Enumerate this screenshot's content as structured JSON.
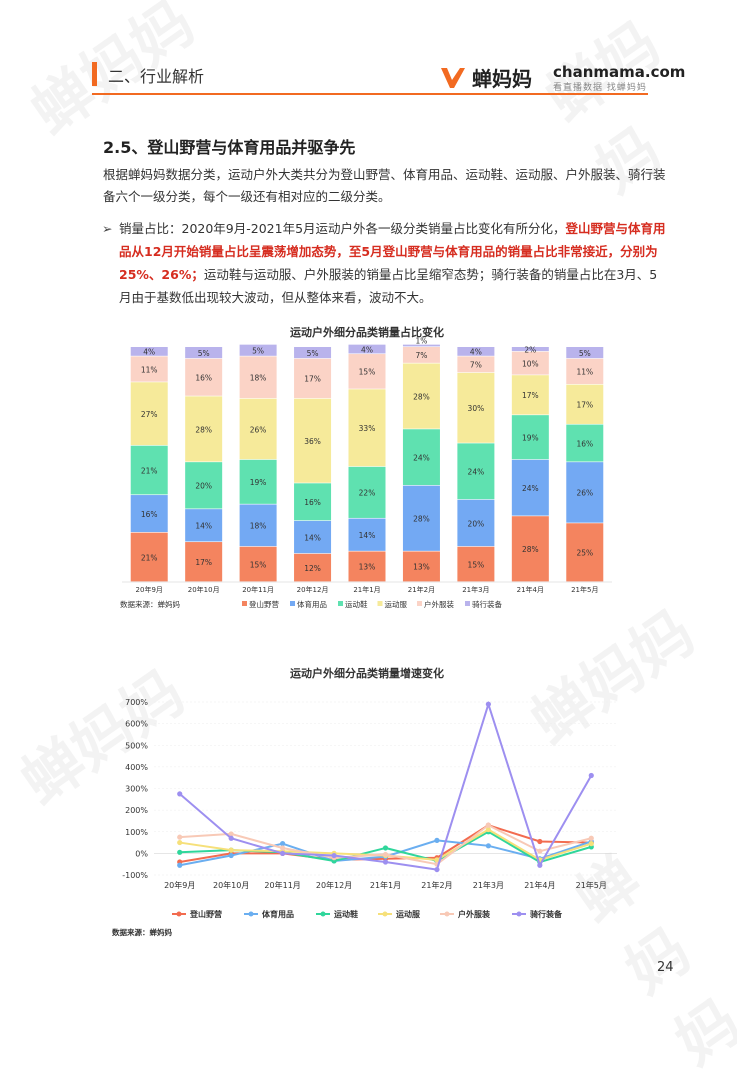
{
  "header": {
    "section": "二、行业解析",
    "logo_cn": "蝉妈妈",
    "logo_en": "chanmama.com",
    "logo_tagline": "看直播数据 找蝉妈妈",
    "accent": "#f26a21"
  },
  "watermark": "蝉妈妈",
  "title": "2.5、登山野营与体育用品并驱争先",
  "paragraph": "根据蝉妈妈数据分类，运动户外大类共分为登山野营、体育用品、运动鞋、运动服、户外服装、骑行装备六个一级分类，每个一级还有相对应的二级分类。",
  "bullet": {
    "icon": "arrow-right-icon",
    "part1": "销量占比：2020年9月-2021年5月运动户外各一级分类销量占比变化有所分化，",
    "part2_red": "登山野营与体育用品从12月开始销量占比呈震荡增加态势，至5月登山野营与体育用品的销量占比非常接近，分别为25%、26%；",
    "part3": "运动鞋与运动服、户外服装的销量占比呈缩窄态势；骑行装备的销量占比在3月、5月由于基数低出现较大波动，但从整体来看，波动不大。"
  },
  "chart_data": [
    {
      "type": "bar",
      "stacked": true,
      "title": "运动户外细分品类销量占比变化",
      "source": "数据来源：蝉妈妈",
      "categories": [
        "20年9月",
        "20年10月",
        "20年11月",
        "20年12月",
        "21年1月",
        "21年2月",
        "21年3月",
        "21年4月",
        "21年5月"
      ],
      "series": [
        {
          "name": "登山野营",
          "color": "#f4845f",
          "values": [
            21,
            17,
            15,
            12,
            13,
            13,
            15,
            28,
            25
          ]
        },
        {
          "name": "体育用品",
          "color": "#73a9f3",
          "values": [
            16,
            14,
            18,
            14,
            14,
            28,
            20,
            24,
            26
          ]
        },
        {
          "name": "运动鞋",
          "color": "#5fe1b0",
          "values": [
            21,
            20,
            19,
            16,
            22,
            24,
            24,
            19,
            16
          ]
        },
        {
          "name": "运动服",
          "color": "#f6ea9a",
          "values": [
            27,
            28,
            26,
            36,
            33,
            28,
            30,
            17,
            17
          ]
        },
        {
          "name": "户外服装",
          "color": "#fbd3c6",
          "values": [
            11,
            16,
            18,
            17,
            15,
            7,
            7,
            10,
            11
          ]
        },
        {
          "name": "骑行装备",
          "color": "#b9b3ec",
          "values": [
            4,
            5,
            5,
            5,
            4,
            1,
            4,
            2,
            5
          ]
        }
      ],
      "ylim": [
        0,
        100
      ],
      "legend": "bottom"
    },
    {
      "type": "line",
      "title": "运动户外细分品类销量增速变化",
      "source": "数据来源：蝉妈妈",
      "categories": [
        "20年9月",
        "20年10月",
        "20年11月",
        "20年12月",
        "21年1月",
        "21年2月",
        "21年3月",
        "21年4月",
        "21年5月"
      ],
      "yticks": [
        "-100%",
        "0%",
        "100%",
        "200%",
        "300%",
        "400%",
        "500%",
        "600%",
        "700%"
      ],
      "ylim": [
        -100,
        700
      ],
      "series": [
        {
          "name": "登山野营",
          "color": "#f26b4f",
          "values": [
            -40,
            0,
            0,
            -30,
            -25,
            -20,
            130,
            55,
            50
          ]
        },
        {
          "name": "体育用品",
          "color": "#6aaef0",
          "values": [
            -55,
            -10,
            45,
            -35,
            -15,
            60,
            35,
            -25,
            55
          ]
        },
        {
          "name": "运动鞋",
          "color": "#2fd69b",
          "values": [
            5,
            15,
            5,
            -35,
            25,
            -35,
            100,
            -40,
            30
          ]
        },
        {
          "name": "运动服",
          "color": "#f6e07a",
          "values": [
            50,
            15,
            10,
            0,
            -10,
            -30,
            110,
            -30,
            45
          ]
        },
        {
          "name": "户外服装",
          "color": "#f8c9b6",
          "values": [
            75,
            90,
            25,
            -20,
            -5,
            -50,
            130,
            10,
            70
          ]
        },
        {
          "name": "骑行装备",
          "color": "#9d8ff0",
          "values": [
            275,
            70,
            0,
            -10,
            -40,
            -75,
            690,
            -55,
            360
          ]
        }
      ],
      "legend": "bottom"
    }
  ],
  "page_number": "24"
}
